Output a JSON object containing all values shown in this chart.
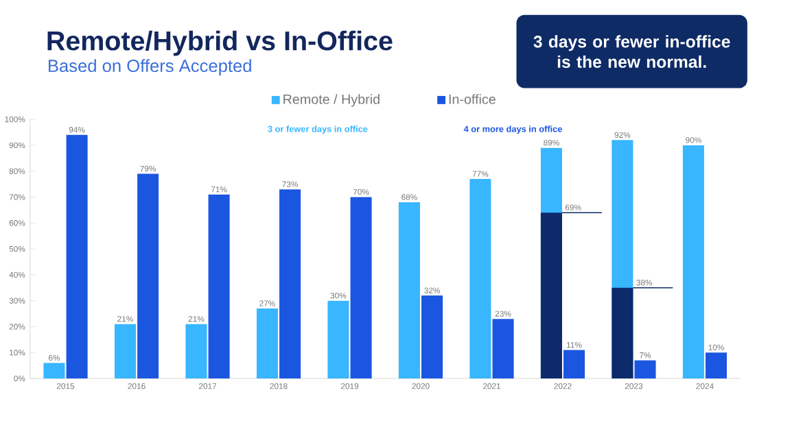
{
  "chart_data": {
    "type": "bar",
    "title": "Remote/Hybrid vs In-Office",
    "subtitle": "Based on Offers Accepted",
    "categories": [
      "2015",
      "2016",
      "2017",
      "2018",
      "2019",
      "2020",
      "2021",
      "2022",
      "2023",
      "2024"
    ],
    "series": [
      {
        "name": "Remote / Hybrid",
        "color": "#38b6ff",
        "values": [
          6,
          21,
          21,
          27,
          30,
          68,
          77,
          89,
          92,
          90
        ],
        "value_labels": [
          "6%",
          "21%",
          "21%",
          "27%",
          "30%",
          "68%",
          "77%",
          "89%",
          "92%",
          "90%"
        ]
      },
      {
        "name": "In-office",
        "color": "#1a56e0",
        "values": [
          94,
          79,
          71,
          73,
          70,
          32,
          23,
          11,
          7,
          10
        ],
        "value_labels": [
          "94%",
          "79%",
          "71%",
          "73%",
          "70%",
          "32%",
          "23%",
          "11%",
          "7%",
          "10%"
        ]
      },
      {
        "color": "#0d2a6b",
        "values": [
          null,
          null,
          null,
          null,
          null,
          null,
          null,
          64,
          35,
          null
        ]
      }
    ],
    "ylim": [
      0,
      100
    ],
    "yticks": [
      {
        "value": 0,
        "label": "0%"
      },
      {
        "value": 10,
        "label": "10%"
      },
      {
        "value": 20,
        "label": "20%"
      },
      {
        "value": 30,
        "label": "30%"
      },
      {
        "value": 40,
        "label": "40%"
      },
      {
        "value": 50,
        "label": "50%"
      },
      {
        "value": 60,
        "label": "60%"
      },
      {
        "value": 70,
        "label": "70%"
      },
      {
        "value": 80,
        "label": "80%"
      },
      {
        "value": 90,
        "label": "90%"
      },
      {
        "value": 100,
        "label": "100%"
      }
    ],
    "annotations": [
      "3 or fewer days in office",
      "4 or more days in office",
      "3 days or fewer in-office is the new normal.",
      {
        "text": "69%",
        "x": "2022",
        "y": 64
      },
      {
        "text": "38%",
        "x": "2023",
        "y": 35
      }
    ],
    "legend": "top",
    "grid": false
  }
}
